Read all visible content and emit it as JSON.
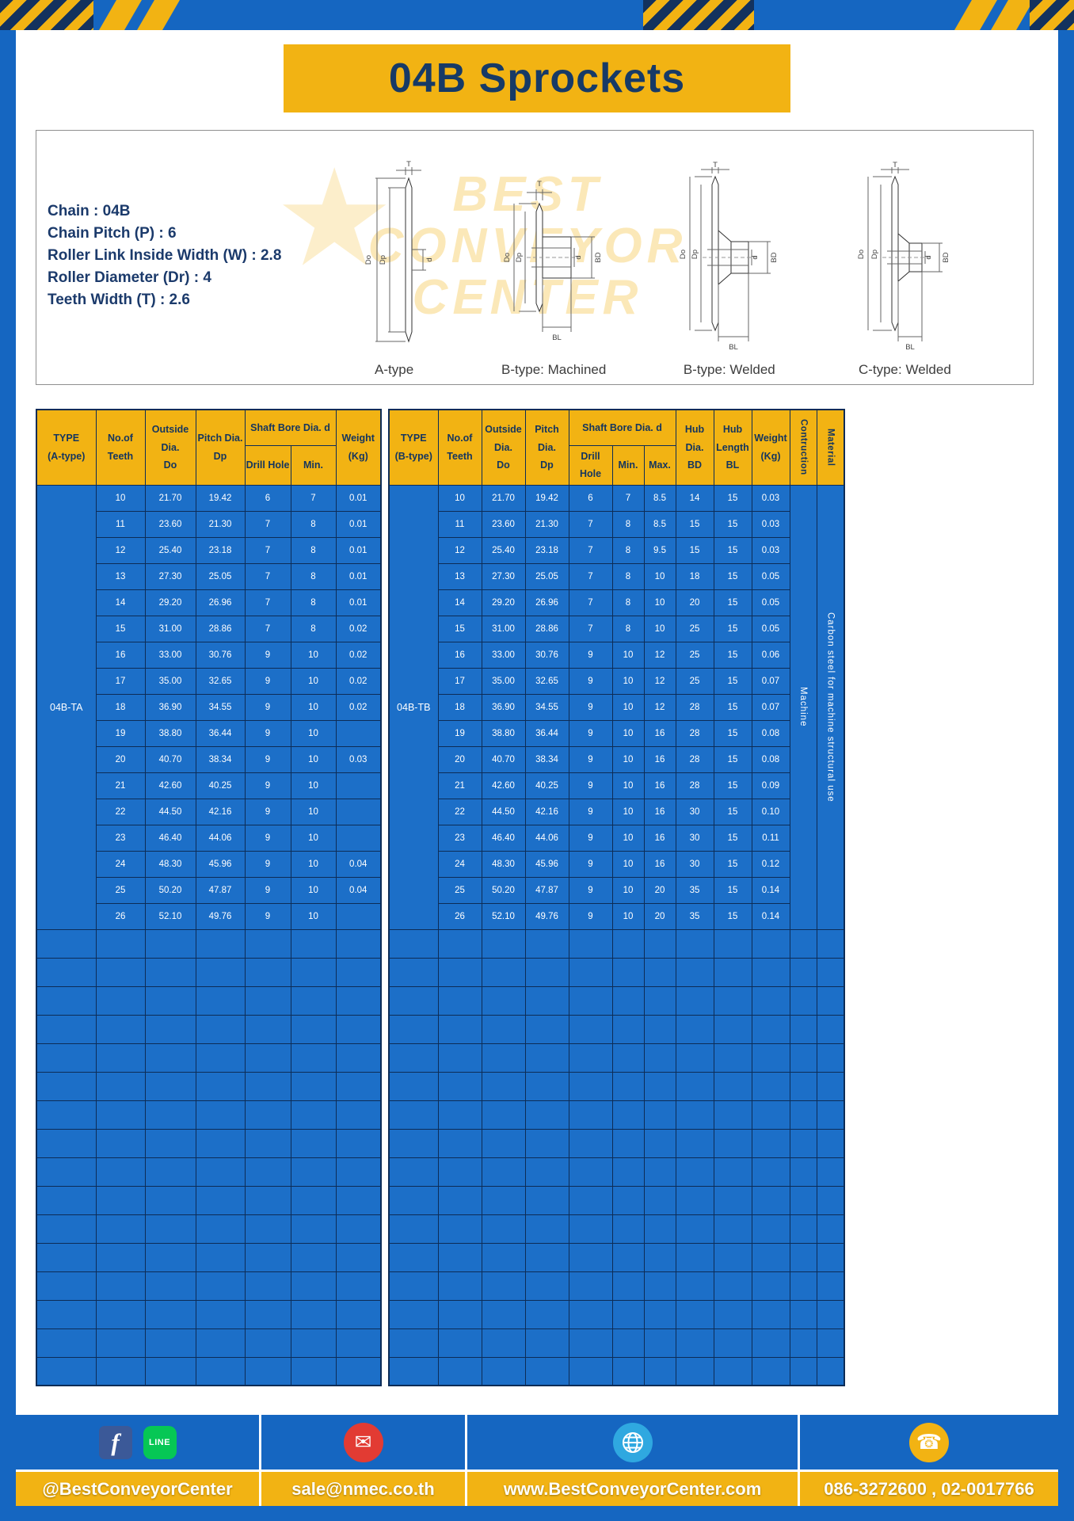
{
  "title": "04B Sprockets",
  "specs": [
    "Chain : 04B",
    "Chain Pitch (P) : 6",
    "Roller Link Inside Width (W) : 2.8",
    "Roller Diameter (Dr) : 4",
    "Teeth Width (T) : 2.6"
  ],
  "watermark": {
    "star": "★",
    "line1": "BEST",
    "line2": "CONVEYOR",
    "line3": "CENTER"
  },
  "diagrams": [
    {
      "caption": "A-type",
      "labels": {
        "t": "T",
        "dia_o": "Do",
        "dia_p": "Dp",
        "d": "d"
      }
    },
    {
      "caption": "B-type: Machined",
      "labels": {
        "t": "T",
        "dia_o": "Do",
        "dia_p": "Dp",
        "d": "d",
        "bd": "BD",
        "bl": "BL"
      }
    },
    {
      "caption": "B-type: Welded",
      "labels": {
        "t": "T",
        "dia_o": "Do",
        "dia_p": "Dp",
        "d": "d",
        "bd": "BD",
        "bl": "BL"
      }
    },
    {
      "caption": "C-type: Welded",
      "labels": {
        "t": "T",
        "dia_o": "Do",
        "dia_p": "Dp",
        "d": "d",
        "bd": "BD",
        "bl": "BL"
      }
    }
  ],
  "tables": {
    "left": {
      "type_label": "04B-TA",
      "headers": {
        "type": "TYPE\n(A-type)",
        "teeth": "No.of\nTeeth",
        "outside": "Outside\nDia.\nDo",
        "pitch": "Pitch Dia.\nDp",
        "shaft": "Shaft Bore Dia. d",
        "drill": "Drill Hole",
        "min": "Min.",
        "weight": "Weight\n(Kg)"
      },
      "rows": [
        [
          "10",
          "21.70",
          "19.42",
          "6",
          "7",
          "0.01"
        ],
        [
          "11",
          "23.60",
          "21.30",
          "7",
          "8",
          "0.01"
        ],
        [
          "12",
          "25.40",
          "23.18",
          "7",
          "8",
          "0.01"
        ],
        [
          "13",
          "27.30",
          "25.05",
          "7",
          "8",
          "0.01"
        ],
        [
          "14",
          "29.20",
          "26.96",
          "7",
          "8",
          "0.01"
        ],
        [
          "15",
          "31.00",
          "28.86",
          "7",
          "8",
          "0.02"
        ],
        [
          "16",
          "33.00",
          "30.76",
          "9",
          "10",
          "0.02"
        ],
        [
          "17",
          "35.00",
          "32.65",
          "9",
          "10",
          "0.02"
        ],
        [
          "18",
          "36.90",
          "34.55",
          "9",
          "10",
          "0.02"
        ],
        [
          "19",
          "38.80",
          "36.44",
          "9",
          "10",
          ""
        ],
        [
          "20",
          "40.70",
          "38.34",
          "9",
          "10",
          "0.03"
        ],
        [
          "21",
          "42.60",
          "40.25",
          "9",
          "10",
          ""
        ],
        [
          "22",
          "44.50",
          "42.16",
          "9",
          "10",
          ""
        ],
        [
          "23",
          "46.40",
          "44.06",
          "9",
          "10",
          ""
        ],
        [
          "24",
          "48.30",
          "45.96",
          "9",
          "10",
          "0.04"
        ],
        [
          "25",
          "50.20",
          "47.87",
          "9",
          "10",
          "0.04"
        ],
        [
          "26",
          "52.10",
          "49.76",
          "9",
          "10",
          ""
        ]
      ]
    },
    "right": {
      "type_label": "04B-TB",
      "construction": "Machine",
      "material": "Carbon steel for machine structural use",
      "headers": {
        "type": "TYPE\n(B-type)",
        "teeth": "No.of\nTeeth",
        "outside": "Outside\nDia.\nDo",
        "pitch": "Pitch Dia.\nDp",
        "shaft": "Shaft Bore Dia. d",
        "drill": "Drill Hole",
        "min": "Min.",
        "max": "Max.",
        "hub_dia": "Hub Dia.\nBD",
        "hub_len": "Hub\nLength\nBL",
        "weight": "Weight\n(Kg)",
        "construction": "Contruction",
        "material": "Material"
      },
      "rows": [
        [
          "10",
          "21.70",
          "19.42",
          "6",
          "7",
          "8.5",
          "14",
          "15",
          "0.03"
        ],
        [
          "11",
          "23.60",
          "21.30",
          "7",
          "8",
          "8.5",
          "15",
          "15",
          "0.03"
        ],
        [
          "12",
          "25.40",
          "23.18",
          "7",
          "8",
          "9.5",
          "15",
          "15",
          "0.03"
        ],
        [
          "13",
          "27.30",
          "25.05",
          "7",
          "8",
          "10",
          "18",
          "15",
          "0.05"
        ],
        [
          "14",
          "29.20",
          "26.96",
          "7",
          "8",
          "10",
          "20",
          "15",
          "0.05"
        ],
        [
          "15",
          "31.00",
          "28.86",
          "7",
          "8",
          "10",
          "25",
          "15",
          "0.05"
        ],
        [
          "16",
          "33.00",
          "30.76",
          "9",
          "10",
          "12",
          "25",
          "15",
          "0.06"
        ],
        [
          "17",
          "35.00",
          "32.65",
          "9",
          "10",
          "12",
          "25",
          "15",
          "0.07"
        ],
        [
          "18",
          "36.90",
          "34.55",
          "9",
          "10",
          "12",
          "28",
          "15",
          "0.07"
        ],
        [
          "19",
          "38.80",
          "36.44",
          "9",
          "10",
          "16",
          "28",
          "15",
          "0.08"
        ],
        [
          "20",
          "40.70",
          "38.34",
          "9",
          "10",
          "16",
          "28",
          "15",
          "0.08"
        ],
        [
          "21",
          "42.60",
          "40.25",
          "9",
          "10",
          "16",
          "28",
          "15",
          "0.09"
        ],
        [
          "22",
          "44.50",
          "42.16",
          "9",
          "10",
          "16",
          "30",
          "15",
          "0.10"
        ],
        [
          "23",
          "46.40",
          "44.06",
          "9",
          "10",
          "16",
          "30",
          "15",
          "0.11"
        ],
        [
          "24",
          "48.30",
          "45.96",
          "9",
          "10",
          "16",
          "30",
          "15",
          "0.12"
        ],
        [
          "25",
          "50.20",
          "47.87",
          "9",
          "10",
          "20",
          "35",
          "15",
          "0.14"
        ],
        [
          "26",
          "52.10",
          "49.76",
          "9",
          "10",
          "20",
          "35",
          "15",
          "0.14"
        ]
      ]
    }
  },
  "footer": {
    "facebook_label": "f",
    "line_label": "LINE",
    "mail_glyph": "✉",
    "phone_glyph": "☎",
    "social": "@BestConveyorCenter",
    "email": "sale@nmec.co.th",
    "website": "www.BestConveyorCenter.com",
    "phone": "086-3272600 , 02-0017766"
  },
  "colors": {
    "accent_yellow": "#F2B313",
    "frame_blue": "#1566C1",
    "table_blue": "#1C6FC8",
    "navy_text": "#14355F"
  }
}
